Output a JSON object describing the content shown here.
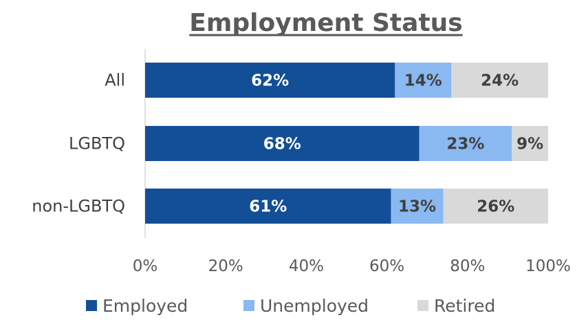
{
  "chart_data": {
    "type": "bar",
    "orientation": "horizontal",
    "stacked": true,
    "title": "Employment Status",
    "categories": [
      "All",
      "LGBTQ",
      "non-LGBTQ"
    ],
    "series": [
      {
        "name": "Employed",
        "values": [
          62,
          68,
          61
        ],
        "labels": [
          "62%",
          "68%",
          "61%"
        ],
        "color": "#124F97",
        "label_color": "#ffffff"
      },
      {
        "name": "Unemployed",
        "values": [
          14,
          23,
          13
        ],
        "labels": [
          "14%",
          "23%",
          "13%"
        ],
        "color": "#8AB8F0",
        "label_color": "#404040"
      },
      {
        "name": "Retired",
        "values": [
          24,
          9,
          26
        ],
        "labels": [
          "24%",
          "9%",
          "26%"
        ],
        "color": "#D9D9D9",
        "label_color": "#404040"
      }
    ],
    "xlim": [
      0,
      100
    ],
    "x_ticks": [
      "0%",
      "20%",
      "40%",
      "60%",
      "80%",
      "100%"
    ],
    "xlabel": "",
    "ylabel": "",
    "grid": false,
    "legend_position": "bottom",
    "axis_color": "#D9D9D9",
    "title_color": "#595959"
  }
}
